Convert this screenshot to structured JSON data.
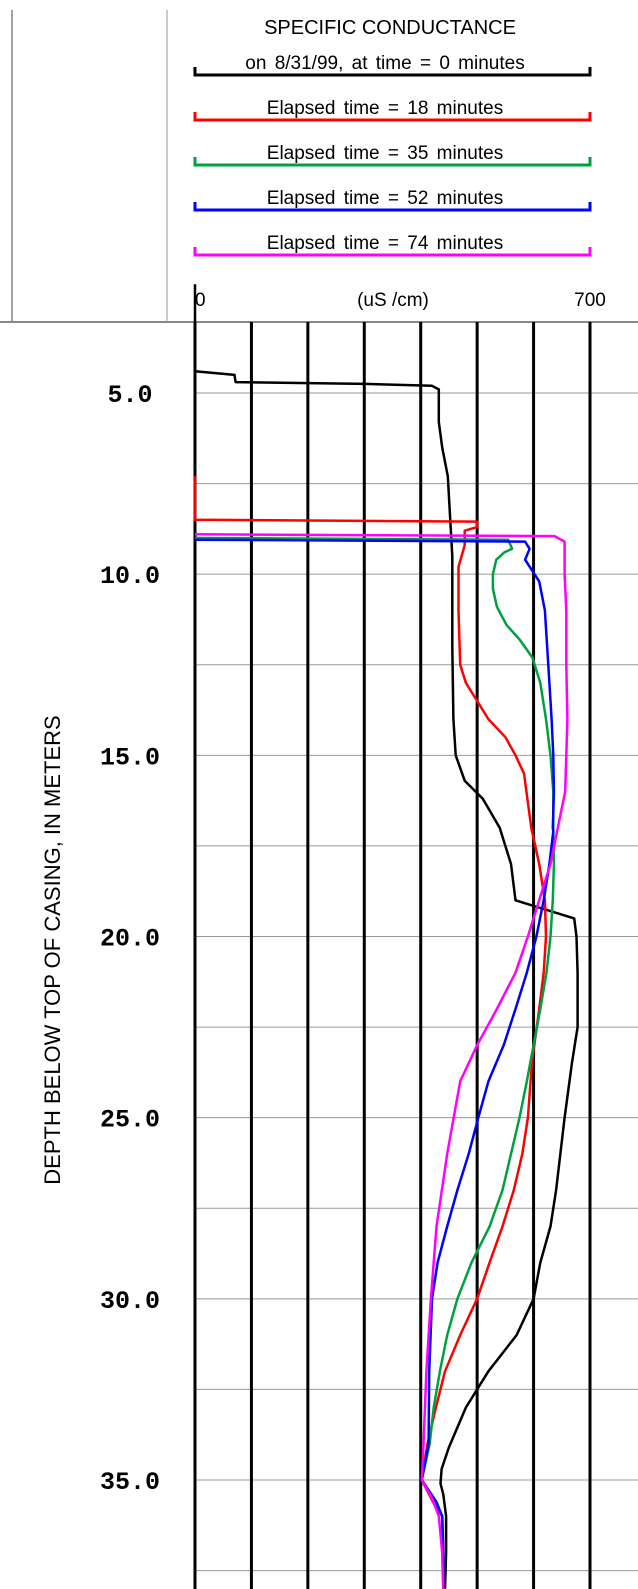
{
  "chart_data": {
    "type": "line",
    "title": "SPECIFIC CONDUCTANCE",
    "xlabel": "(uS /cm)",
    "ylabel": "DEPTH BELOW TOP OF CASING, IN METERS",
    "xlim": [
      0,
      700
    ],
    "ylim": [
      2.0,
      38.0
    ],
    "y_inverted": true,
    "x_tick_labels": [
      "0",
      "700"
    ],
    "y_ticks": [
      5,
      10,
      15,
      20,
      25,
      30,
      35
    ],
    "y_tick_labels": [
      "5.0",
      "10.0",
      "15.0",
      "20.0",
      "25.0",
      "30.0",
      "35.0"
    ],
    "legend_placement": "top",
    "grid": true,
    "series": [
      {
        "name": "on 8/31/99, at time = 0 minutes",
        "color": "#000000",
        "points": [
          [
            0,
            2
          ],
          [
            0,
            4.4
          ],
          [
            70,
            4.5
          ],
          [
            72,
            4.7
          ],
          [
            300,
            4.75
          ],
          [
            420,
            4.8
          ],
          [
            432,
            4.9
          ],
          [
            432,
            5.8
          ],
          [
            438,
            6.5
          ],
          [
            448,
            7.3
          ],
          [
            456,
            9.5
          ],
          [
            456,
            12
          ],
          [
            458,
            14
          ],
          [
            462,
            15
          ],
          [
            478,
            15.7
          ],
          [
            510,
            16.2
          ],
          [
            540,
            17
          ],
          [
            560,
            18
          ],
          [
            568,
            19
          ],
          [
            672,
            19.5
          ],
          [
            676,
            20
          ],
          [
            678,
            21
          ],
          [
            678,
            22.5
          ],
          [
            668,
            23.5
          ],
          [
            655,
            25
          ],
          [
            640,
            27
          ],
          [
            630,
            28
          ],
          [
            612,
            29
          ],
          [
            600,
            30
          ],
          [
            570,
            31
          ],
          [
            520,
            32
          ],
          [
            480,
            33
          ],
          [
            450,
            34.1
          ],
          [
            437,
            34.7
          ],
          [
            435,
            35.1
          ],
          [
            440,
            35.4
          ],
          [
            445,
            36
          ],
          [
            445,
            37
          ],
          [
            443,
            38
          ]
        ]
      },
      {
        "name": "Elapsed time = 18 minutes",
        "color": "#ff0000",
        "points": [
          [
            0,
            7.3
          ],
          [
            0,
            8.5
          ],
          [
            500,
            8.55
          ],
          [
            500,
            8.7
          ],
          [
            478,
            8.8
          ],
          [
            478,
            9.2
          ],
          [
            467,
            9.8
          ],
          [
            467,
            11
          ],
          [
            470,
            12.5
          ],
          [
            480,
            13
          ],
          [
            520,
            14
          ],
          [
            550,
            14.5
          ],
          [
            568,
            15
          ],
          [
            583,
            15.5
          ],
          [
            596,
            17
          ],
          [
            610,
            18
          ],
          [
            620,
            19
          ],
          [
            622,
            20
          ],
          [
            618,
            21
          ],
          [
            610,
            22
          ],
          [
            597,
            23.5
          ],
          [
            590,
            25
          ],
          [
            580,
            26
          ],
          [
            565,
            27
          ],
          [
            545,
            28
          ],
          [
            522,
            29
          ],
          [
            500,
            30
          ],
          [
            470,
            31
          ],
          [
            443,
            32
          ],
          [
            427,
            33
          ],
          [
            412,
            34
          ],
          [
            402,
            35
          ],
          [
            425,
            35.7
          ],
          [
            438,
            36
          ],
          [
            440,
            37
          ],
          [
            440,
            38
          ]
        ]
      },
      {
        "name": "Elapsed time = 35 minutes",
        "color": "#00a040",
        "points": [
          [
            0,
            9.0
          ],
          [
            555,
            9.05
          ],
          [
            562,
            9.3
          ],
          [
            548,
            9.4
          ],
          [
            534,
            9.6
          ],
          [
            528,
            10
          ],
          [
            528,
            10.4
          ],
          [
            535,
            10.9
          ],
          [
            552,
            11.4
          ],
          [
            575,
            11.8
          ],
          [
            598,
            12.3
          ],
          [
            612,
            13
          ],
          [
            622,
            14
          ],
          [
            630,
            15
          ],
          [
            635,
            16
          ],
          [
            635,
            17
          ],
          [
            636,
            18
          ],
          [
            634,
            19
          ],
          [
            630,
            20
          ],
          [
            623,
            21
          ],
          [
            612,
            22
          ],
          [
            600,
            23
          ],
          [
            588,
            24
          ],
          [
            575,
            25
          ],
          [
            560,
            26
          ],
          [
            545,
            27
          ],
          [
            522,
            28
          ],
          [
            490,
            29
          ],
          [
            465,
            30
          ],
          [
            447,
            31
          ],
          [
            434,
            32
          ],
          [
            423,
            33
          ],
          [
            416,
            34
          ],
          [
            402,
            35
          ],
          [
            428,
            35.6
          ],
          [
            438,
            36
          ],
          [
            438,
            37
          ],
          [
            440,
            38
          ]
        ]
      },
      {
        "name": "Elapsed time = 52 minutes",
        "color": "#0000ff",
        "points": [
          [
            0,
            9.05
          ],
          [
            585,
            9.1
          ],
          [
            593,
            9.3
          ],
          [
            585,
            9.6
          ],
          [
            610,
            10.2
          ],
          [
            620,
            11
          ],
          [
            628,
            13
          ],
          [
            632,
            14
          ],
          [
            635,
            15
          ],
          [
            636,
            16
          ],
          [
            634,
            17
          ],
          [
            635,
            17.1
          ],
          [
            628,
            18
          ],
          [
            618,
            19
          ],
          [
            605,
            20
          ],
          [
            588,
            21
          ],
          [
            568,
            22
          ],
          [
            547,
            23
          ],
          [
            520,
            24
          ],
          [
            502,
            25
          ],
          [
            485,
            26
          ],
          [
            465,
            27
          ],
          [
            447,
            28
          ],
          [
            430,
            29
          ],
          [
            420,
            30
          ],
          [
            415,
            32
          ],
          [
            414,
            34
          ],
          [
            402,
            35
          ],
          [
            427,
            35.6
          ],
          [
            438,
            36
          ],
          [
            440,
            37
          ],
          [
            440,
            38
          ]
        ]
      },
      {
        "name": "Elapsed time = 74 minutes",
        "color": "#ff00ff",
        "points": [
          [
            0,
            8.9
          ],
          [
            637,
            8.95
          ],
          [
            655,
            9.1
          ],
          [
            655,
            10
          ],
          [
            658,
            11
          ],
          [
            658,
            12.5
          ],
          [
            660,
            14
          ],
          [
            658,
            15
          ],
          [
            656,
            16
          ],
          [
            643,
            17
          ],
          [
            630,
            18
          ],
          [
            610,
            19
          ],
          [
            590,
            20
          ],
          [
            568,
            21
          ],
          [
            535,
            22
          ],
          [
            500,
            23
          ],
          [
            470,
            24
          ],
          [
            447,
            26
          ],
          [
            428,
            28
          ],
          [
            418,
            30
          ],
          [
            410,
            32
          ],
          [
            405,
            34
          ],
          [
            402,
            35
          ],
          [
            420,
            35.5
          ],
          [
            432,
            36
          ],
          [
            438,
            37
          ],
          [
            440,
            38
          ]
        ]
      }
    ]
  }
}
